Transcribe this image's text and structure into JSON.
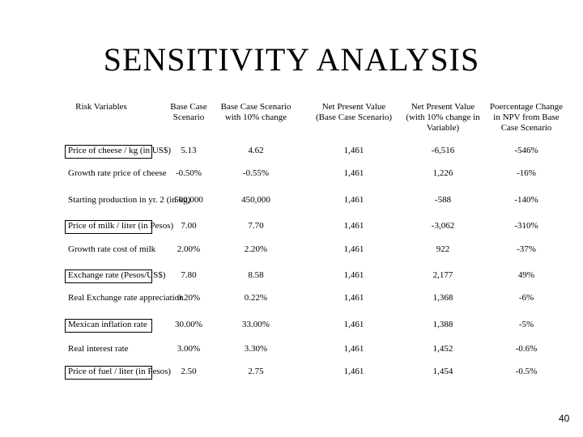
{
  "header": {
    "title": "SENSITIVITY ANALYSIS"
  },
  "table": {
    "columns": [
      "Risk Variables",
      "Base Case Scenario",
      "Base Case Scenario with 10% change",
      "Net Present Value (Base Case Scenario)",
      "Net Present Value (with 10% change in Variable)",
      "Poercentage Change in NPV from Base Case Scenario"
    ],
    "rows": [
      [
        "Price of cheese / kg (in US$)",
        "5.13",
        "4.62",
        "1,461",
        "-6,516",
        "-546%"
      ],
      [
        "Growth rate price of cheese",
        "-0.50%",
        "-0.55%",
        "1,461",
        "1,226",
        "-16%"
      ],
      [
        "Starting production in yr. 2 (in kg)",
        "500,000",
        "450,000",
        "1,461",
        "-588",
        "-140%"
      ],
      [
        "Price of milk / liter (in Pesos)",
        "7.00",
        "7.70",
        "1,461",
        "-3,062",
        "-310%"
      ],
      [
        "Growth rate cost of milk",
        "2.00%",
        "2.20%",
        "1,461",
        "922",
        "-37%"
      ],
      [
        "Exchange rate (Pesos/US$)",
        "7.80",
        "8.58",
        "1,461",
        "2,177",
        "49%"
      ],
      [
        "Real Exchange rate appreciation",
        "0.20%",
        "0.22%",
        "1,461",
        "1,368",
        "-6%"
      ],
      [
        "Mexican inflation rate",
        "30.00%",
        "33.00%",
        "1,461",
        "1,388",
        "-5%"
      ],
      [
        "Real interest rate",
        "3.00%",
        "3.30%",
        "1,461",
        "1,452",
        "-0.6%"
      ],
      [
        "Price of fuel / liter (in Pesos)",
        "2.50",
        "2.75",
        "1,461",
        "1,454",
        "-0.5%"
      ]
    ]
  },
  "footer": {
    "page_number": "40"
  }
}
